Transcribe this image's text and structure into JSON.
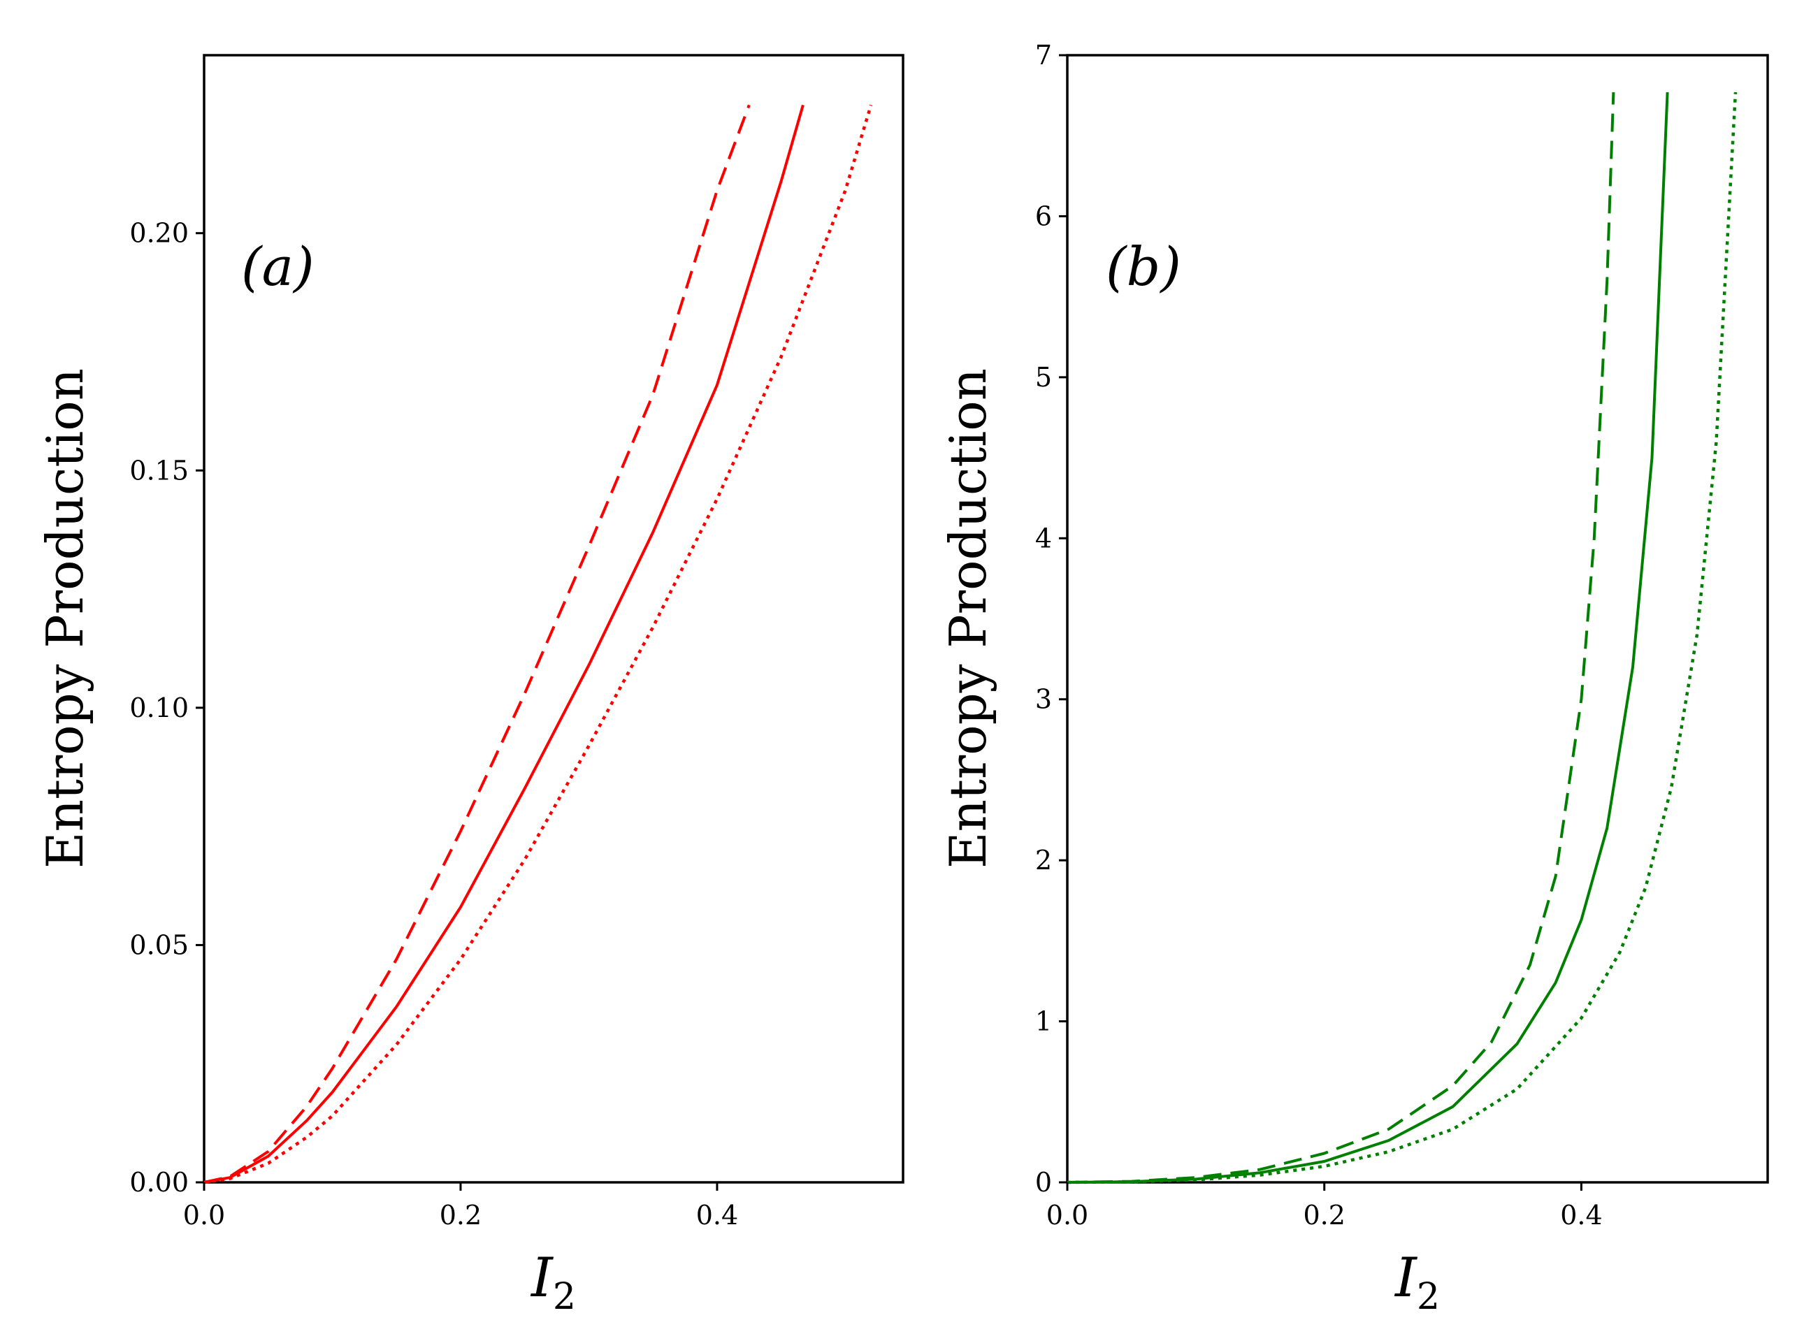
{
  "chart_data": [
    {
      "type": "line",
      "panel_label": "(a)",
      "title": "",
      "xlabel": {
        "main": "I",
        "sub": "2"
      },
      "ylabel": "Entropy Production",
      "xlim": [
        0,
        0.545
      ],
      "ylim": [
        0,
        0.2375
      ],
      "xticks": [
        "0.0",
        "0.2",
        "0.4"
      ],
      "xtick_values": [
        0,
        0.2,
        0.4
      ],
      "yticks": [
        "0.00",
        "0.05",
        "0.10",
        "0.15",
        "0.20"
      ],
      "ytick_values": [
        0,
        0.05,
        0.1,
        0.15,
        0.2
      ],
      "color": "#ff0000",
      "series": [
        {
          "name": "dashed",
          "style": "dashed",
          "x": [
            0,
            0.02,
            0.05,
            0.08,
            0.1,
            0.15,
            0.2,
            0.25,
            0.3,
            0.35,
            0.4,
            0.425
          ],
          "y": [
            0,
            0.0012,
            0.0065,
            0.016,
            0.024,
            0.047,
            0.074,
            0.103,
            0.134,
            0.166,
            0.209,
            0.227
          ]
        },
        {
          "name": "solid",
          "style": "solid",
          "x": [
            0,
            0.02,
            0.05,
            0.08,
            0.1,
            0.15,
            0.2,
            0.25,
            0.3,
            0.35,
            0.4,
            0.45,
            0.467
          ],
          "y": [
            0,
            0.001,
            0.0055,
            0.013,
            0.019,
            0.037,
            0.058,
            0.083,
            0.109,
            0.137,
            0.168,
            0.211,
            0.227
          ]
        },
        {
          "name": "dotted",
          "style": "dotted",
          "x": [
            0,
            0.02,
            0.05,
            0.08,
            0.1,
            0.15,
            0.2,
            0.25,
            0.3,
            0.35,
            0.4,
            0.45,
            0.5,
            0.52
          ],
          "y": [
            0,
            0.0008,
            0.004,
            0.0095,
            0.014,
            0.029,
            0.047,
            0.068,
            0.092,
            0.117,
            0.144,
            0.174,
            0.209,
            0.227
          ]
        }
      ]
    },
    {
      "type": "line",
      "panel_label": "(b)",
      "title": "",
      "xlabel": {
        "main": "I",
        "sub": "2"
      },
      "ylabel": "Entropy Production",
      "xlim": [
        0,
        0.545
      ],
      "ylim": [
        0,
        7
      ],
      "xticks": [
        "0.0",
        "0.2",
        "0.4"
      ],
      "xtick_values": [
        0,
        0.2,
        0.4
      ],
      "yticks": [
        "0",
        "1",
        "2",
        "3",
        "4",
        "5",
        "6",
        "7"
      ],
      "ytick_values": [
        0,
        1,
        2,
        3,
        4,
        5,
        6,
        7
      ],
      "color": "#008000",
      "series": [
        {
          "name": "dashed",
          "style": "dashed",
          "x": [
            0,
            0.05,
            0.1,
            0.15,
            0.2,
            0.25,
            0.3,
            0.33,
            0.36,
            0.38,
            0.4,
            0.41,
            0.42,
            0.425
          ],
          "y": [
            0,
            0.006,
            0.03,
            0.08,
            0.18,
            0.33,
            0.6,
            0.87,
            1.35,
            1.9,
            3.0,
            4.0,
            5.6,
            6.77
          ]
        },
        {
          "name": "solid",
          "style": "solid",
          "x": [
            0,
            0.05,
            0.1,
            0.15,
            0.2,
            0.25,
            0.3,
            0.35,
            0.38,
            0.4,
            0.42,
            0.44,
            0.455,
            0.467
          ],
          "y": [
            0,
            0.004,
            0.02,
            0.06,
            0.13,
            0.26,
            0.47,
            0.86,
            1.24,
            1.63,
            2.2,
            3.2,
            4.5,
            6.77
          ]
        },
        {
          "name": "dotted",
          "style": "dotted",
          "x": [
            0,
            0.05,
            0.1,
            0.15,
            0.2,
            0.25,
            0.3,
            0.35,
            0.4,
            0.43,
            0.45,
            0.47,
            0.49,
            0.505,
            0.52
          ],
          "y": [
            0,
            0.003,
            0.015,
            0.045,
            0.1,
            0.19,
            0.33,
            0.58,
            1.02,
            1.43,
            1.83,
            2.45,
            3.4,
            4.6,
            6.77
          ]
        }
      ]
    }
  ]
}
